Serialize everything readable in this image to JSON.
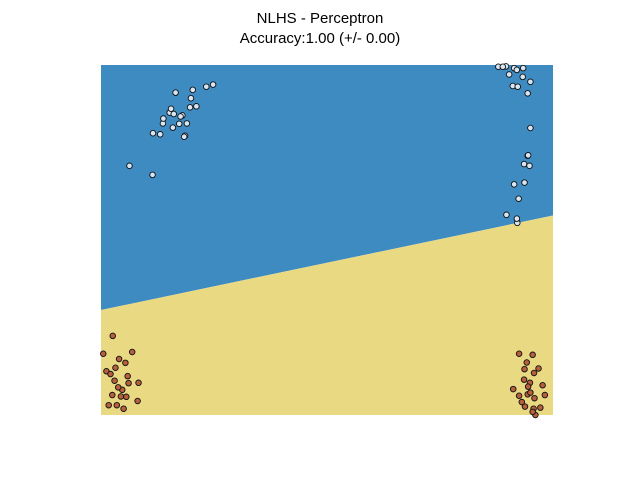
{
  "chart_data": {
    "type": "scatter",
    "title": "NLHS - Perceptron",
    "subtitle": "Accuracy:1.00 (+/- 0.00)",
    "xlabel": "",
    "ylabel": "",
    "xlim": [
      0,
      10
    ],
    "ylim": [
      0,
      10
    ],
    "grid": false,
    "axes_visible": false,
    "decision_boundary": {
      "x": [
        0,
        10
      ],
      "y": [
        3.0,
        5.7
      ]
    },
    "regions": [
      {
        "name": "above",
        "color": "#3e8bc2"
      },
      {
        "name": "below",
        "color": "#e9d983"
      }
    ],
    "series": [
      {
        "color": "#d8e6f4",
        "x": [
          2.48,
          2.03,
          1.65,
          1.37,
          1.52,
          1.99,
          2.33,
          1.8,
          1.59,
          1.15,
          2.11,
          1.76,
          1.9,
          1.38,
          1.55,
          1.31,
          1.97,
          1.73,
          1.61,
          0.63,
          1.14,
          1.86,
          1.84,
          8.79,
          8.96,
          9.14,
          9.03,
          9.11,
          9.2,
          8.89,
          9.33,
          9.34,
          9.22,
          9.44,
          9.5,
          9.5,
          9.36,
          9.44,
          9.48,
          9.45,
          9.37,
          9.14,
          9.24,
          9.21,
          9.2,
          8.97
        ],
        "y": [
          9.44,
          9.29,
          9.21,
          8.33,
          8.64,
          9.05,
          9.38,
          8.56,
          8.21,
          8.05,
          8.82,
          8.53,
          8.33,
          8.47,
          8.75,
          8.02,
          8.79,
          8.32,
          8.6,
          7.12,
          6.86,
          7.98,
          7.95,
          9.95,
          9.96,
          9.91,
          9.73,
          9.4,
          9.86,
          9.95,
          9.66,
          9.91,
          9.38,
          9.19,
          9.52,
          8.2,
          7.17,
          7.41,
          7.12,
          7.42,
          6.64,
          6.59,
          6.18,
          5.49,
          5.61,
          5.72
        ]
      },
      {
        "color": "#b55f3c",
        "x": [
          0.26,
          0.05,
          0.54,
          0.32,
          0.69,
          0.12,
          0.4,
          0.61,
          0.47,
          0.83,
          0.25,
          0.44,
          0.17,
          0.5,
          0.35,
          0.56,
          0.3,
          0.21,
          0.38,
          0.81,
          0.59,
          9.25,
          9.42,
          9.55,
          9.37,
          9.68,
          9.36,
          9.12,
          9.58,
          9.44,
          9.82,
          9.49,
          9.77,
          9.31,
          9.25,
          9.38,
          9.59,
          9.57,
          9.72,
          9.45,
          9.5,
          9.61,
          9.55
        ],
        "y": [
          2.26,
          1.75,
          1.49,
          1.35,
          1.8,
          1.25,
          1.6,
          0.91,
          0.72,
          0.92,
          0.57,
          0.53,
          0.28,
          0.18,
          0.28,
          0.52,
          0.98,
          1.17,
          0.79,
          0.4,
          1.11,
          1.75,
          1.5,
          1.72,
          1.31,
          1.33,
          1.01,
          0.74,
          1.2,
          0.59,
          0.57,
          0.92,
          0.85,
          0.37,
          0.55,
          0.24,
          0.48,
          0.18,
          0.21,
          0.81,
          0.64,
          0.0,
          0.09
        ]
      }
    ]
  }
}
